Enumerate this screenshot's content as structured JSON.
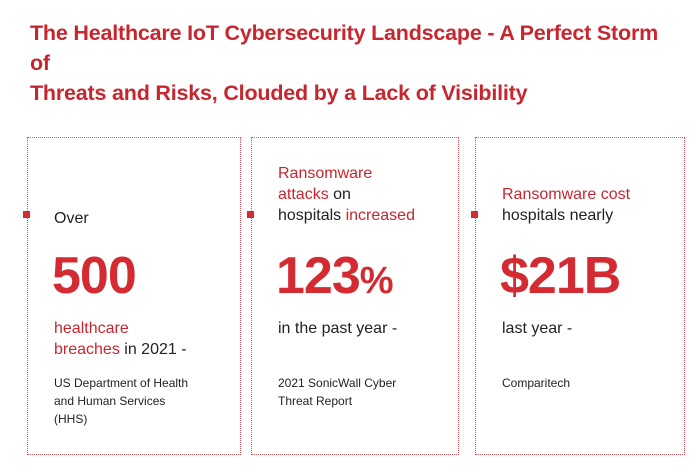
{
  "title_line1": "The Healthcare IoT Cybersecurity Landscape - A Perfect Storm of",
  "title_line2": "Threats and Risks, Clouded by a Lack of Visibility",
  "colors": {
    "accent": "#d42b33",
    "title": "#c8262f",
    "text": "#222222"
  },
  "cards": [
    {
      "lead_plain": "Over",
      "stat": "500",
      "follow_red_1": "healthcare",
      "follow_red_2": "breaches",
      "follow_plain": " in 2021 -",
      "source_1": "US Department of Health",
      "source_2": "and Human Services",
      "source_3": "(HHS)"
    },
    {
      "lead_red_1": "Ransomware",
      "lead_red_2": "attacks",
      "lead_plain_2": " on",
      "lead_plain_3": "hospitals ",
      "lead_red_3": "increased",
      "stat_number": "123",
      "stat_pct": "%",
      "follow_plain": "in the past year -",
      "source_1": "2021 SonicWall Cyber",
      "source_2": "Threat Report"
    },
    {
      "lead_red_1": "Ransomware cost",
      "lead_plain_2": "hospitals nearly",
      "stat": "$21B",
      "follow_plain": "last year -",
      "source_1": "Comparitech"
    }
  ]
}
